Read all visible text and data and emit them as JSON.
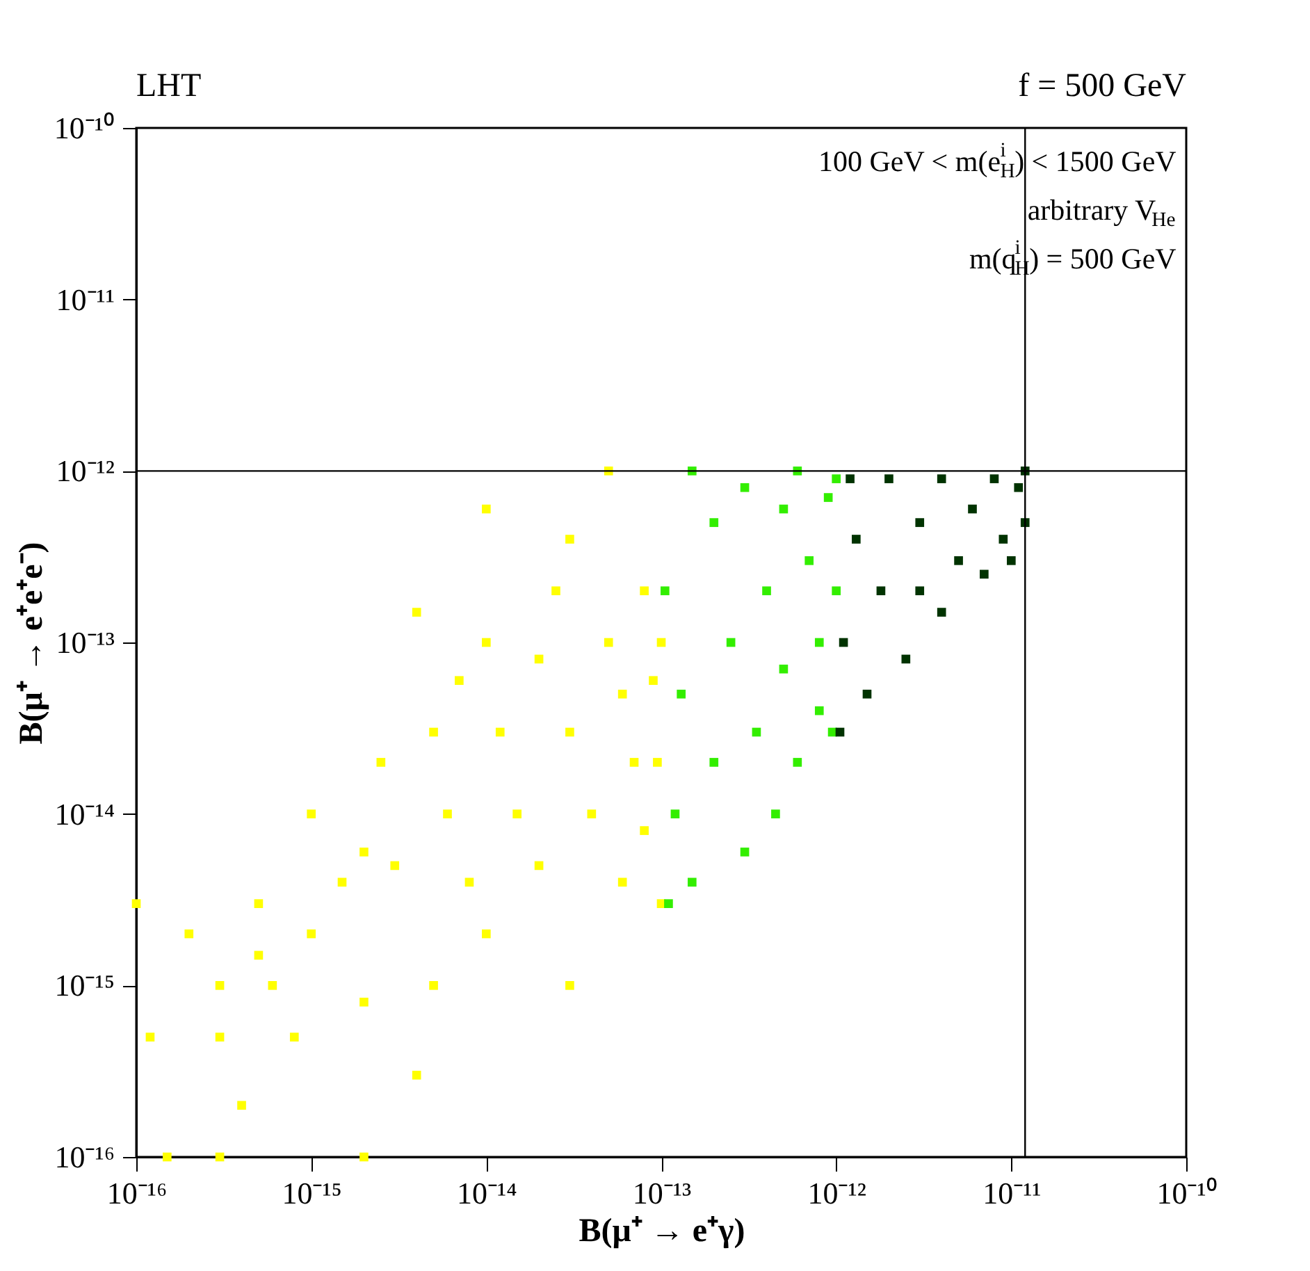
{
  "chart_data": {
    "type": "scatter",
    "xlabel": "B(μ⁺ → e⁺γ)",
    "ylabel": "B(μ⁺ → e⁺e⁺e⁻)",
    "annotations": [
      "LHT",
      "f = 500 GeV",
      "100 GeV < m(e$_{H}$$^{i}$) < 1500 GeV",
      "arbitrary V$_{He}$",
      "m(q$_{H}$$^{i}$) = 500 GeV"
    ],
    "log": "xy",
    "grid": false,
    "marker": "square",
    "xlim": [
      1e-16,
      1e-10
    ],
    "ylim": [
      1e-16,
      1e-10
    ],
    "xticks": [
      {
        "value": 1e-16,
        "label": "10⁻¹⁶"
      },
      {
        "value": 1e-15,
        "label": "10⁻¹⁵"
      },
      {
        "value": 1e-14,
        "label": "10⁻¹⁴"
      },
      {
        "value": 1e-13,
        "label": "10⁻¹³"
      },
      {
        "value": 1e-12,
        "label": "10⁻¹²"
      },
      {
        "value": 1e-11,
        "label": "10⁻¹¹"
      },
      {
        "value": 1e-10,
        "label": "10⁻¹⁰"
      }
    ],
    "yticks": [
      {
        "value": 1e-16,
        "label": "10⁻¹⁶"
      },
      {
        "value": 1e-15,
        "label": "10⁻¹⁵"
      },
      {
        "value": 1e-14,
        "label": "10⁻¹⁴"
      },
      {
        "value": 1e-13,
        "label": "10⁻¹³"
      },
      {
        "value": 1e-12,
        "label": "10⁻¹²"
      },
      {
        "value": 1e-11,
        "label": "10⁻¹¹"
      },
      {
        "value": 1e-10,
        "label": "10⁻¹⁰"
      }
    ],
    "ref_lines": [
      {
        "axis": "y",
        "value": 1e-12,
        "color": "#000000"
      },
      {
        "axis": "x",
        "value": 1.2e-11,
        "color": "#000000"
      }
    ],
    "series": [
      {
        "color": "#ffff00",
        "x": [
          1e-16,
          1.2e-16,
          1.5e-16,
          2e-16,
          3e-16,
          3e-16,
          4e-16,
          5e-16,
          6e-16,
          8e-16,
          1e-15,
          1e-15,
          1.5e-15,
          2e-15,
          2e-15,
          2.5e-15,
          3e-15,
          4e-15,
          5e-15,
          5e-15,
          6e-15,
          8e-15,
          1e-14,
          1e-14,
          1.2e-14,
          1.5e-14,
          2e-14,
          2e-14,
          2.5e-14,
          3e-14,
          3e-14,
          4e-14,
          5e-14,
          5e-14,
          6e-14,
          6e-14,
          7e-14,
          8e-14,
          8e-14,
          9e-14,
          9.5e-14,
          1e-13,
          1e-13,
          3e-16,
          4e-15,
          1e-14,
          3e-14,
          7e-15,
          2e-15,
          5e-16
        ],
        "values": [
          3e-15,
          5e-16,
          1e-16,
          2e-15,
          5e-16,
          1e-15,
          2e-16,
          3e-15,
          1e-15,
          5e-16,
          1e-14,
          2e-15,
          4e-15,
          1e-16,
          8e-16,
          2e-14,
          5e-15,
          3e-16,
          1e-15,
          3e-14,
          1e-14,
          4e-15,
          1e-13,
          2e-15,
          3e-14,
          1e-14,
          5e-15,
          8e-14,
          2e-13,
          3e-14,
          1e-15,
          1e-14,
          1e-12,
          1e-13,
          5e-14,
          4e-15,
          2e-14,
          2e-13,
          8e-15,
          6e-14,
          2e-14,
          1e-13,
          3e-15,
          1e-16,
          1.5e-13,
          6e-13,
          4e-13,
          6e-14,
          6e-15,
          1.5e-15
        ]
      },
      {
        "color": "#33ee00",
        "x": [
          1.05e-13,
          1.1e-13,
          1.2e-13,
          1.3e-13,
          1.5e-13,
          1.5e-13,
          2e-13,
          2e-13,
          2.5e-13,
          3e-13,
          3e-13,
          3.5e-13,
          4e-13,
          4.5e-13,
          5e-13,
          5e-13,
          6e-13,
          6e-13,
          7e-13,
          8e-13,
          8e-13,
          9e-13,
          9.5e-13,
          1e-12,
          1e-12
        ],
        "values": [
          2e-13,
          3e-15,
          1e-14,
          5e-14,
          1e-12,
          4e-15,
          5e-13,
          2e-14,
          1e-13,
          6e-15,
          8e-13,
          3e-14,
          2e-13,
          1e-14,
          6e-13,
          7e-14,
          1e-12,
          2e-14,
          3e-13,
          4e-14,
          1e-13,
          7e-13,
          3e-14,
          2e-13,
          9e-13
        ]
      },
      {
        "color": "#003300",
        "x": [
          1.05e-12,
          1.1e-12,
          1.2e-12,
          1.3e-12,
          1.5e-12,
          1.8e-12,
          2e-12,
          2.5e-12,
          3e-12,
          3e-12,
          4e-12,
          4e-12,
          5e-12,
          6e-12,
          7e-12,
          8e-12,
          9e-12,
          1e-11,
          1.1e-11,
          1.2e-11,
          1.2e-11
        ],
        "values": [
          3e-14,
          1e-13,
          9e-13,
          4e-13,
          5e-14,
          2e-13,
          9e-13,
          8e-14,
          5e-13,
          2e-13,
          1.5e-13,
          9e-13,
          3e-13,
          6e-13,
          2.5e-13,
          9e-13,
          4e-13,
          3e-13,
          8e-13,
          5e-13,
          1e-12
        ]
      }
    ]
  }
}
